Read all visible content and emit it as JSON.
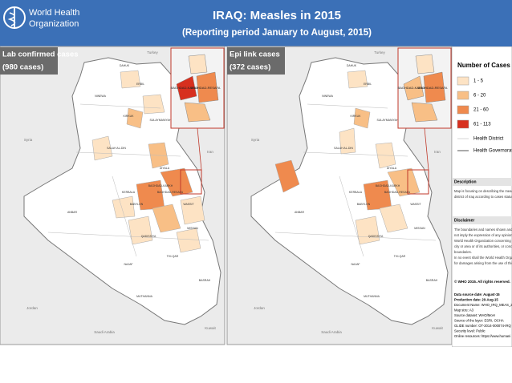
{
  "header": {
    "org": [
      "World Health",
      "Organization"
    ],
    "title": "IRAQ: Measles in 2015",
    "subtitle": "(Reporting period January to August, 2015)"
  },
  "panels": [
    {
      "title": "Lab confirmed cases",
      "subtitle": "(980 cases)",
      "inset_labels": [
        "BAGHDAD-KARKH",
        "BAGHDAD-RESAFA"
      ]
    },
    {
      "title": "Epi link cases",
      "subtitle": "(372 cases)",
      "inset_labels": [
        "BAGHDAD-KARKH",
        "BAGHDAD-RESAFA"
      ]
    }
  ],
  "places": [
    "DAHUK",
    "NINEWA",
    "ERBIL",
    "KIRKUK",
    "SULAYMANIYAH",
    "SALAH AL-DIN",
    "ANBAR",
    "DIYALA",
    "BAGHDAD-KARKH",
    "BAGHDAD-RESAFA",
    "WASSIT",
    "KERBALA",
    "BABYLON",
    "NAJAF",
    "QADISSIYA",
    "MISSAN",
    "THI-QAR",
    "BASRAH",
    "MUTHANNA"
  ],
  "countries": [
    "Turkey",
    "Syria",
    "Iran",
    "Jordan",
    "Saudi Arabia",
    "Kuwait"
  ],
  "legend": {
    "title": "Number of Cases",
    "classes": [
      {
        "label": "1 - 5",
        "color": "#fde3c4"
      },
      {
        "label": "6 - 20",
        "color": "#f8bf86"
      },
      {
        "label": "21 - 60",
        "color": "#ef8a4e"
      },
      {
        "label": "61 - 113",
        "color": "#d7301f"
      }
    ],
    "lines": [
      "Health District",
      "Health Governorate"
    ]
  },
  "description": {
    "heading": "Description",
    "lines": [
      "Map is focusing on describing the measles",
      "district of Iraq according to cases status, fro"
    ]
  },
  "disclaimer": {
    "heading": "Disclaimer",
    "lines": [
      "The boundaries and names shown and the",
      "not imply the expression of any opinion wh",
      "World Health Organization concerning the l",
      "city or area or of its authorities, or concernin",
      "boundaries.",
      "In no event shall the World Health Organiz",
      "for damages arising from the use of this ma"
    ]
  },
  "copyright": "© WHO 2015. All rights reserved.",
  "sources": [
    "Data source date: August-15",
    "Production date: 20-Aug-15",
    "Document Name: WHO_IRQ_MEAS_201",
    "Map size: A3",
    "Source dataset: WHO/MoH",
    "Source of the layer: ESRI, OCHA",
    "GLIDE number: OT-2014-000074-IRQ",
    "Security level: Public",
    "Online resources: https://www.humani"
  ]
}
